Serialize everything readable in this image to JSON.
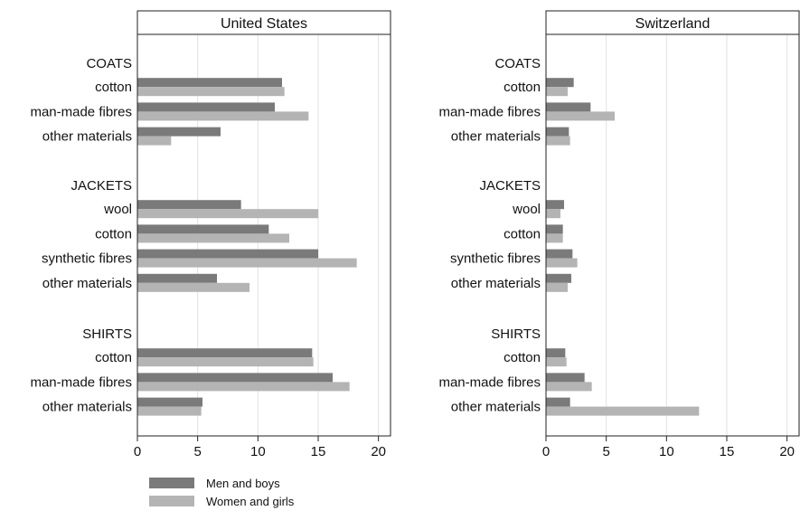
{
  "chart_data": {
    "type": "bar",
    "orientation": "horizontal",
    "xlim": [
      0,
      21
    ],
    "xticks": [
      0,
      5,
      10,
      15,
      20
    ],
    "grid": true,
    "legend_position": "bottom-left",
    "series": [
      {
        "name": "Men and boys",
        "color": "#7a7a7a"
      },
      {
        "name": "Women and girls",
        "color": "#b4b4b4"
      }
    ],
    "groups": [
      {
        "name": "COATS",
        "items": [
          "cotton",
          "man-made fibres",
          "other materials"
        ]
      },
      {
        "name": "JACKETS",
        "items": [
          "wool",
          "cotton",
          "synthetic fibres",
          "other materials"
        ]
      },
      {
        "name": "SHIRTS",
        "items": [
          "cotton",
          "man-made fibres",
          "other materials"
        ]
      }
    ],
    "panels": [
      {
        "title": "United States",
        "values": {
          "COATS": [
            [
              12.0,
              12.2
            ],
            [
              11.4,
              14.2
            ],
            [
              6.9,
              2.8
            ]
          ],
          "JACKETS": [
            [
              8.6,
              15.0
            ],
            [
              10.9,
              12.6
            ],
            [
              15.0,
              18.2
            ],
            [
              6.6,
              9.3
            ]
          ],
          "SHIRTS": [
            [
              14.5,
              14.6
            ],
            [
              16.2,
              17.6
            ],
            [
              5.4,
              5.3
            ]
          ]
        }
      },
      {
        "title": "Switzerland",
        "values": {
          "COATS": [
            [
              2.3,
              1.8
            ],
            [
              3.7,
              5.7
            ],
            [
              1.9,
              2.0
            ]
          ],
          "JACKETS": [
            [
              1.5,
              1.2
            ],
            [
              1.4,
              1.4
            ],
            [
              2.2,
              2.6
            ],
            [
              2.1,
              1.8
            ]
          ],
          "SHIRTS": [
            [
              1.6,
              1.7
            ],
            [
              3.2,
              3.8
            ],
            [
              2.0,
              12.7
            ]
          ]
        }
      }
    ]
  }
}
